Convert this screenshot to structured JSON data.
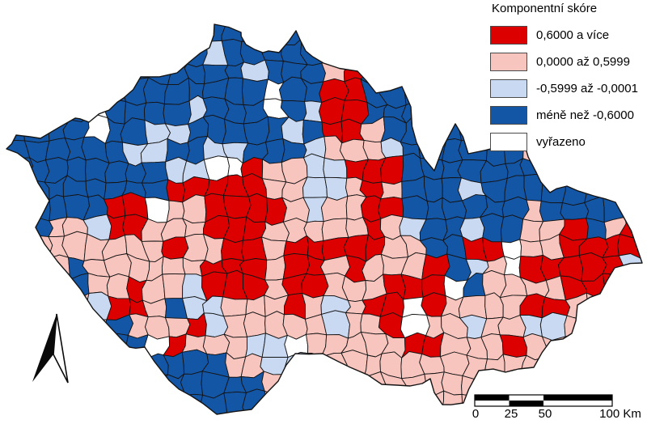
{
  "figure": {
    "type": "choropleth-map",
    "region": "Czech Republic (municipal districts)",
    "background": "#ffffff"
  },
  "legend": {
    "title": "Komponentní skóre",
    "items": [
      {
        "label": "0,6000 a více",
        "color": "#dc0000",
        "key": "R"
      },
      {
        "label": "0,0000 až 0,5999",
        "color": "#f8c4be",
        "key": "P"
      },
      {
        "label": "-0,5999 až -0,0001",
        "color": "#c9d9f2",
        "key": "L"
      },
      {
        "label": "méně než -0,6000",
        "color": "#1456a6",
        "key": "B"
      },
      {
        "label": "vyřazeno",
        "color": "#ffffff",
        "key": "W"
      }
    ]
  },
  "scale_bar": {
    "labels": [
      "0",
      "25",
      "50",
      "100 Km"
    ],
    "ticks_km": [
      0,
      25,
      50,
      100
    ]
  },
  "map": {
    "outline_color": "#141414",
    "palette": {
      "R": "#dc0000",
      "P": "#f8c4be",
      "L": "#c9d9f2",
      "B": "#1456a6",
      "W": "#ffffff"
    },
    "grid_note": "category per cell, 32 cols west-to-east, 20 rows north-to-south; R/P/L/B/W as in legend keys",
    "grid": [
      "BBBBBBBBBBBBBBBBPRBBBBBBBBBBBRRR",
      "BBBBBBBBBBLBBBBBPRBBBBBBBBBBBRRR",
      "BBBBBBBBBBBBLBBBPRBBBBBBBBBBBRRR",
      "BBBBBBBBBBBBBWBBRRBBBBBBBBBBBRRR",
      "BBBBWBBBBLBBBWBLRRBBBBBBBBBBRRRR",
      "BBBBWBBLLBBBBBLBRRPBBBBBBBPPRRRR",
      "BBBBBBLLBBLLBBBLPPPLBBBBBBPPRRRR",
      "BBBBBBBBLLWWRPPLLRRRBBBBBBBBBRRR",
      "BBBBBBBBRRRRRPPLLPRPBBBLBBBBBBRR",
      "BBBBBRRWPPRRRRPLPPRRBBBBBBPBBBBR",
      "BBPPLRRPPPRRRPPPPPRPLBBLBBPPRBPR",
      "PPPPPPPPRPPRRPRRRRRPPBBRRWPPRRRR",
      "PPPBPPPPPPRRRPRRPRPPPRBLPWRRRRRL",
      "PPPBPPRPPLRRRPRRPPPRRRWBPPPPRRRL",
      "PPPPLRRPBLLPPPRPLPRRWRPPPPRRPPRL",
      "PPPPPBPPPRLPPPPPLPPRWPPLPPLLPPRL",
      "PPPPBBBWRPPPLLWPPPPPRRPPPRPPPPRL",
      "PPPPBBBBBBBPPLLPPPPPPPPPPPPPPPRL",
      "BBBBBBBBBBBBBPPPPPPPPPPPPPPPPPPP",
      "BBBBBBBBBBBBBPPPPPPPPPPPPPPPPPPP"
    ]
  }
}
